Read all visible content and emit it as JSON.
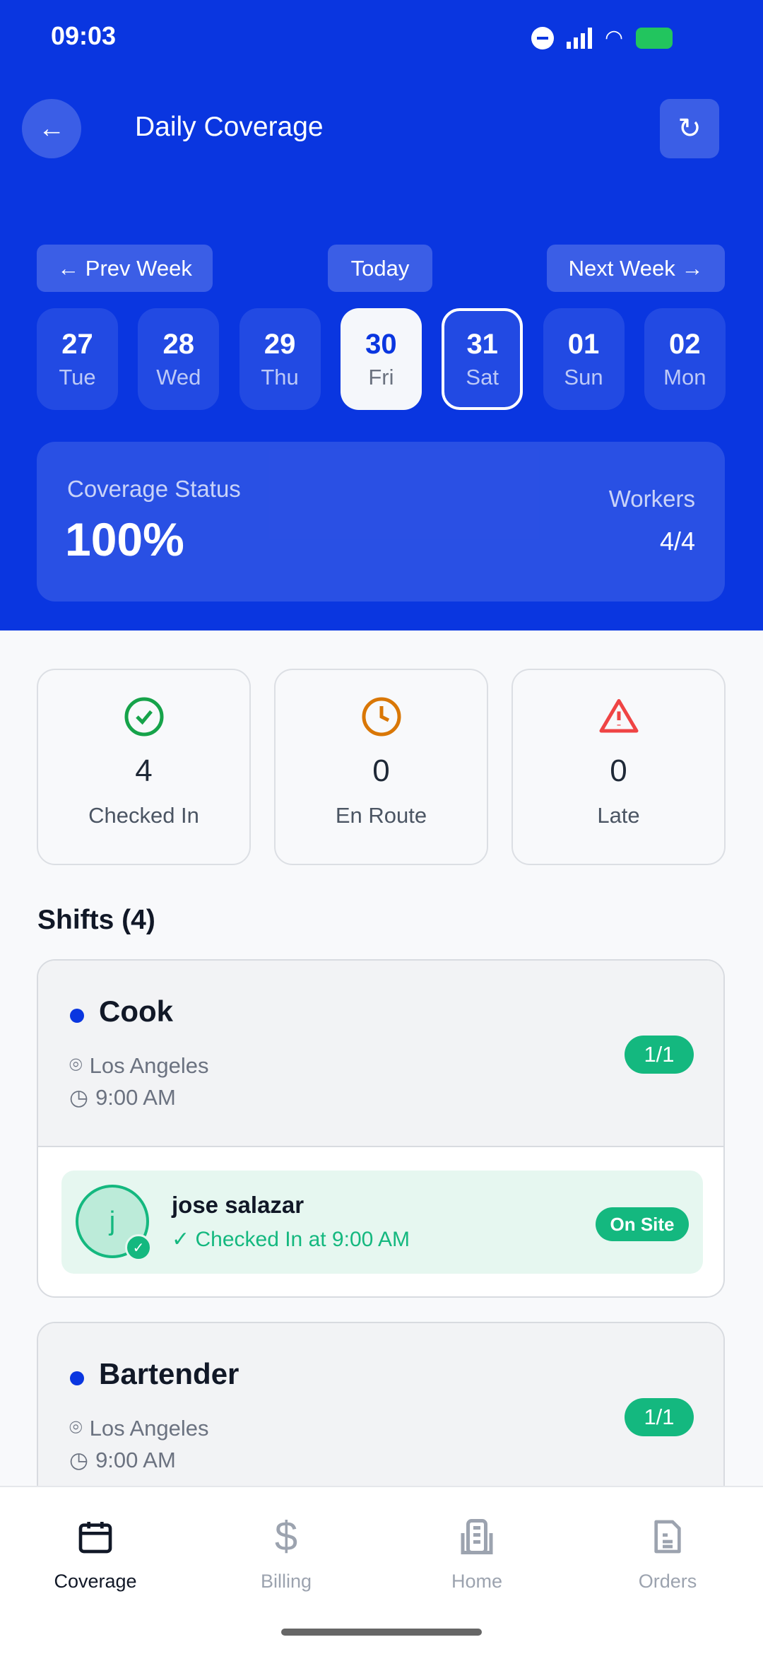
{
  "status_bar": {
    "time": "09:03"
  },
  "header": {
    "title": "Daily Coverage",
    "back_icon": "arrow-left-icon",
    "refresh_icon": "refresh-icon"
  },
  "week_nav": {
    "prev": "← Prev Week",
    "today": "Today",
    "next": "Next Week →"
  },
  "days": [
    {
      "num": "27",
      "day": "Tue"
    },
    {
      "num": "28",
      "day": "Wed"
    },
    {
      "num": "29",
      "day": "Thu"
    },
    {
      "num": "30",
      "day": "Fri",
      "state": "selected"
    },
    {
      "num": "31",
      "day": "Sat",
      "state": "today-outline"
    },
    {
      "num": "01",
      "day": "Sun"
    },
    {
      "num": "02",
      "day": "Mon"
    }
  ],
  "coverage": {
    "label": "Coverage Status",
    "value": "100%",
    "workers_label": "Workers",
    "workers_value": "4/4"
  },
  "stats": [
    {
      "value": "4",
      "label": "Checked In",
      "icon": "check-circle-icon",
      "color": "#16a34a"
    },
    {
      "value": "0",
      "label": "En Route",
      "icon": "clock-icon",
      "color": "#d97706"
    },
    {
      "value": "0",
      "label": "Late",
      "icon": "warning-triangle-icon",
      "color": "#ef4444"
    }
  ],
  "shifts_heading": "Shifts (4)",
  "shifts": [
    {
      "role": "Cook",
      "location": "Los Angeles",
      "time": "9:00 AM",
      "filled": "1/1",
      "worker": {
        "initial": "j",
        "name": "jose salazar",
        "status_text": "✓ Checked In at 9:00 AM",
        "badge": "On Site"
      }
    },
    {
      "role": "Bartender",
      "location": "Los Angeles",
      "time": "9:00 AM",
      "filled": "1/1"
    }
  ],
  "bottom_nav": [
    {
      "label": "Coverage",
      "icon": "calendar-icon",
      "active": true
    },
    {
      "label": "Billing",
      "icon": "dollar-icon"
    },
    {
      "label": "Home",
      "icon": "building-icon"
    },
    {
      "label": "Orders",
      "icon": "document-icon"
    }
  ],
  "colors": {
    "primary": "#0a36e0",
    "success": "#14b87f"
  }
}
